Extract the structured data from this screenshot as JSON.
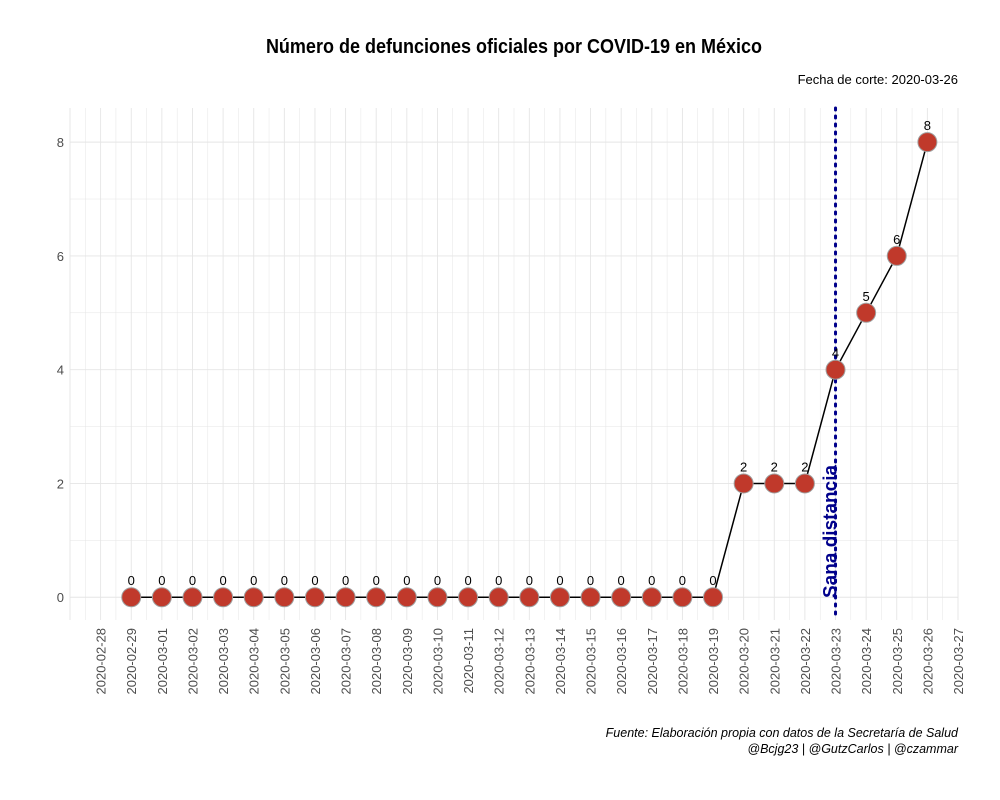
{
  "chart_data": {
    "type": "line",
    "title": "Número de defunciones oficiales por COVID-19 en México",
    "subtitle": "Fecha de corte: 2020-03-26",
    "caption_line1": "Fuente: Elaboración propia con datos de la Secretaría de Salud",
    "caption_line2": "@Bcjg23 | @GutzCarlos | @czammar",
    "xlabel": "",
    "ylabel": "",
    "x_ticks": [
      "2020-02-28",
      "2020-02-29",
      "2020-03-01",
      "2020-03-02",
      "2020-03-03",
      "2020-03-04",
      "2020-03-05",
      "2020-03-06",
      "2020-03-07",
      "2020-03-08",
      "2020-03-09",
      "2020-03-10",
      "2020-03-11",
      "2020-03-12",
      "2020-03-13",
      "2020-03-14",
      "2020-03-15",
      "2020-03-16",
      "2020-03-17",
      "2020-03-18",
      "2020-03-19",
      "2020-03-20",
      "2020-03-21",
      "2020-03-22",
      "2020-03-23",
      "2020-03-24",
      "2020-03-25",
      "2020-03-26",
      "2020-03-27"
    ],
    "x": [
      "2020-02-29",
      "2020-03-01",
      "2020-03-02",
      "2020-03-03",
      "2020-03-04",
      "2020-03-05",
      "2020-03-06",
      "2020-03-07",
      "2020-03-08",
      "2020-03-09",
      "2020-03-10",
      "2020-03-11",
      "2020-03-12",
      "2020-03-13",
      "2020-03-14",
      "2020-03-15",
      "2020-03-16",
      "2020-03-17",
      "2020-03-18",
      "2020-03-19",
      "2020-03-20",
      "2020-03-21",
      "2020-03-22",
      "2020-03-23",
      "2020-03-24",
      "2020-03-25",
      "2020-03-26"
    ],
    "series": [
      {
        "values": [
          0,
          0,
          0,
          0,
          0,
          0,
          0,
          0,
          0,
          0,
          0,
          0,
          0,
          0,
          0,
          0,
          0,
          0,
          0,
          0,
          2,
          2,
          2,
          4,
          5,
          6,
          8
        ]
      }
    ],
    "y_ticks": [
      0,
      2,
      4,
      6,
      8
    ],
    "ylim": [
      -0.4,
      8.6
    ],
    "xlim": [
      "2020-02-27",
      "2020-03-27"
    ],
    "vline": {
      "x": "2020-03-23",
      "label": "Sana distancia",
      "color": "#00008b",
      "style": "dotted"
    },
    "colors": {
      "point": "#c0392b",
      "point_outline": "#a0a0a0",
      "line": "#000000",
      "grid": "#e5e5e5"
    },
    "grid": true,
    "data_labels": true
  }
}
